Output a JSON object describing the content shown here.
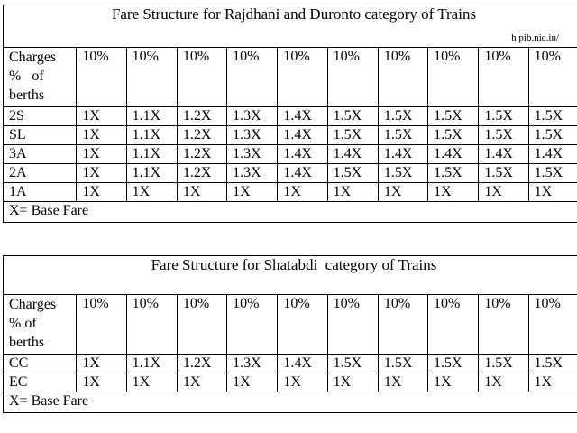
{
  "tables": [
    {
      "title": "Fare Structure for Rajdhani and Duronto category of Trains",
      "source": "h  pib.nic.in/",
      "header_label": [
        "Charges",
        "%   of",
        "berths"
      ],
      "percent_headers": [
        "10%",
        "10%",
        "10%",
        "10%",
        "10%",
        "10%",
        "10%",
        "10%",
        "10%",
        "10%"
      ],
      "rows": [
        {
          "class": "2S",
          "values": [
            "1X",
            "1.1X",
            "1.2X",
            "1.3X",
            "1.4X",
            "1.5X",
            "1.5X",
            "1.5X",
            "1.5X",
            "1.5X"
          ]
        },
        {
          "class": "SL",
          "values": [
            "1X",
            "1.1X",
            "1.2X",
            "1.3X",
            "1.4X",
            "1.5X",
            "1.5X",
            "1.5X",
            "1.5X",
            "1.5X"
          ]
        },
        {
          "class": "3A",
          "values": [
            "1X",
            "1.1X",
            "1.2X",
            "1.3X",
            "1.4X",
            "1.4X",
            "1.4X",
            "1.4X",
            "1.4X",
            "1.4X"
          ]
        },
        {
          "class": "2A",
          "values": [
            "1X",
            "1.1X",
            "1.2X",
            "1.3X",
            "1.4X",
            "1.5X",
            "1.5X",
            "1.5X",
            "1.5X",
            "1.5X"
          ]
        },
        {
          "class": "1A",
          "values": [
            "1X",
            "1X",
            "1X",
            "1X",
            "1X",
            "1X",
            "1X",
            "1X",
            "1X",
            "1X"
          ]
        }
      ],
      "footer": "X= Base Fare"
    },
    {
      "title": "Fare Structure for Shatabdi  category of Trains",
      "header_label": [
        "Charges",
        "% of",
        "berths"
      ],
      "percent_headers": [
        "10%",
        "10%",
        "10%",
        "10%",
        "10%",
        "10%",
        "10%",
        "10%",
        "10%",
        "10%"
      ],
      "rows": [
        {
          "class": "CC",
          "values": [
            "1X",
            "1.1X",
            "1.2X",
            "1.3X",
            "1.4X",
            "1.5X",
            "1.5X",
            "1.5X",
            "1.5X",
            "1.5X"
          ]
        },
        {
          "class": "EC",
          "values": [
            "1X",
            "1X",
            "1X",
            "1X",
            "1X",
            "1X",
            "1X",
            "1X",
            "1X",
            "1X"
          ]
        }
      ],
      "footer": "X= Base Fare"
    }
  ]
}
